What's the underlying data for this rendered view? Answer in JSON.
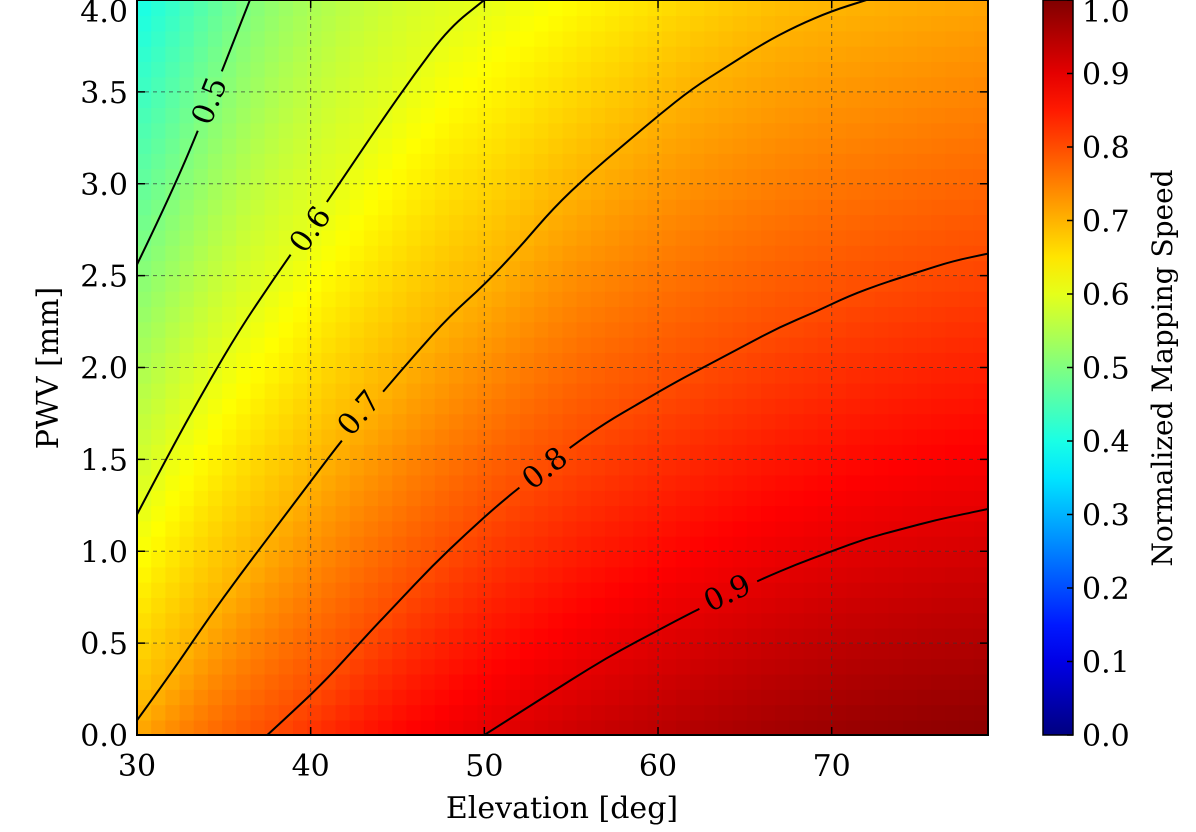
{
  "chart_data": {
    "type": "heatmap",
    "title": "",
    "xlabel": "Elevation [deg]",
    "ylabel": "PWV [mm]",
    "xlim": [
      30,
      79
    ],
    "ylim": [
      0.0,
      4.0
    ],
    "x_ticks": [
      30,
      40,
      50,
      60,
      70
    ],
    "x_tick_labels": [
      "30",
      "40",
      "50",
      "60",
      "70"
    ],
    "y_ticks": [
      0.0,
      0.5,
      1.0,
      1.5,
      2.0,
      2.5,
      3.0,
      3.5,
      4.0
    ],
    "y_tick_labels": [
      "0.0",
      "0.5",
      "1.0",
      "1.5",
      "2.0",
      "2.5",
      "3.0",
      "3.5",
      "4.0"
    ],
    "grid": true,
    "grid_style": "dashed",
    "colormap": "jet",
    "colorbar": {
      "label": "Normalized Mapping Speed",
      "range": [
        0.0,
        1.0
      ],
      "ticks": [
        0.0,
        0.1,
        0.2,
        0.3,
        0.4,
        0.5,
        0.6,
        0.7,
        0.8,
        0.9,
        1.0
      ],
      "tick_labels": [
        "0.0",
        "0.1",
        "0.2",
        "0.3",
        "0.4",
        "0.5",
        "0.6",
        "0.7",
        "0.8",
        "0.9",
        "1.0"
      ],
      "placement": "right"
    },
    "contours": [
      {
        "level": 0.5,
        "label": "0.5",
        "label_at": [
          34.2,
          3.45
        ],
        "points": [
          [
            30,
            2.56
          ],
          [
            32,
            2.95
          ],
          [
            34,
            3.4
          ],
          [
            36.5,
            4.0
          ]
        ]
      },
      {
        "level": 0.6,
        "label": "0.6",
        "label_at": [
          40.0,
          2.75
        ],
        "points": [
          [
            30,
            1.2
          ],
          [
            32,
            1.56
          ],
          [
            34,
            1.9
          ],
          [
            36,
            2.22
          ],
          [
            38,
            2.5
          ],
          [
            40,
            2.77
          ],
          [
            42,
            3.05
          ],
          [
            44,
            3.33
          ],
          [
            46,
            3.6
          ],
          [
            48,
            3.85
          ],
          [
            50,
            4.0
          ]
        ]
      },
      {
        "level": 0.7,
        "label": "0.7",
        "label_at": [
          42.8,
          1.75
        ],
        "points": [
          [
            30,
            0.08
          ],
          [
            32,
            0.34
          ],
          [
            34,
            0.62
          ],
          [
            36,
            0.88
          ],
          [
            38,
            1.13
          ],
          [
            40,
            1.38
          ],
          [
            42,
            1.63
          ],
          [
            44,
            1.85
          ],
          [
            46,
            2.07
          ],
          [
            48,
            2.28
          ],
          [
            50,
            2.45
          ],
          [
            52,
            2.65
          ],
          [
            54,
            2.87
          ],
          [
            56,
            3.05
          ],
          [
            58,
            3.21
          ],
          [
            60,
            3.37
          ],
          [
            62,
            3.52
          ],
          [
            64,
            3.64
          ],
          [
            66,
            3.76
          ],
          [
            68,
            3.86
          ],
          [
            70,
            3.94
          ],
          [
            72,
            4.0
          ]
        ]
      },
      {
        "level": 0.8,
        "label": "0.8",
        "label_at": [
          53.5,
          1.45
        ],
        "points": [
          [
            37.5,
            0.0
          ],
          [
            39,
            0.13
          ],
          [
            41,
            0.31
          ],
          [
            43,
            0.52
          ],
          [
            45,
            0.72
          ],
          [
            47,
            0.92
          ],
          [
            49,
            1.1
          ],
          [
            51,
            1.27
          ],
          [
            53,
            1.42
          ],
          [
            55,
            1.57
          ],
          [
            57,
            1.7
          ],
          [
            59,
            1.81
          ],
          [
            61,
            1.92
          ],
          [
            63,
            2.02
          ],
          [
            65,
            2.12
          ],
          [
            67,
            2.22
          ],
          [
            69,
            2.3
          ],
          [
            71,
            2.39
          ],
          [
            73,
            2.46
          ],
          [
            75,
            2.52
          ],
          [
            77,
            2.58
          ],
          [
            79,
            2.62
          ]
        ]
      },
      {
        "level": 0.9,
        "label": "0.9",
        "label_at": [
          64.0,
          0.77
        ],
        "points": [
          [
            50,
            0.0
          ],
          [
            52,
            0.12
          ],
          [
            54,
            0.24
          ],
          [
            56,
            0.36
          ],
          [
            58,
            0.47
          ],
          [
            60,
            0.57
          ],
          [
            62,
            0.67
          ],
          [
            64,
            0.76
          ],
          [
            66,
            0.85
          ],
          [
            68,
            0.93
          ],
          [
            70,
            1.0
          ],
          [
            72,
            1.07
          ],
          [
            74,
            1.12
          ],
          [
            76,
            1.17
          ],
          [
            78,
            1.21
          ],
          [
            79,
            1.23
          ]
        ]
      }
    ]
  }
}
